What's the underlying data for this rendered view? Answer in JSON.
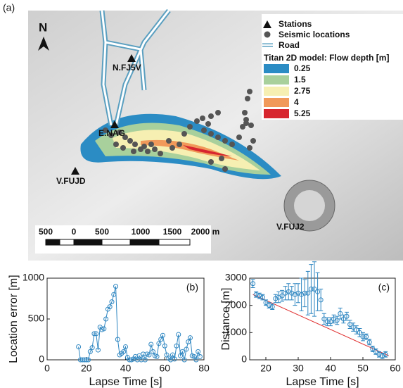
{
  "map": {
    "label": "(a)",
    "north": "N",
    "legend": [
      "Stations",
      "Seismic locations",
      "Road"
    ],
    "flow_title": "Titan 2D model: Flow depth [m]",
    "flow_depth": [
      {
        "value": 0.25,
        "color": "#2b8cc4"
      },
      {
        "value": 1.5,
        "color": "#a8d09c"
      },
      {
        "value": 2.75,
        "color": "#f6efb2"
      },
      {
        "value": 4,
        "color": "#f1995a"
      },
      {
        "value": 5.25,
        "color": "#d7262e"
      }
    ],
    "stations": [
      "N.FJ5V",
      "E.NAG",
      "V.FUJD",
      "V.FUJ2"
    ],
    "scale_labels": [
      "500",
      "0",
      "500",
      "1000",
      "1500",
      "2000 m"
    ]
  },
  "chart_data": [
    {
      "type": "line",
      "label": "(b)",
      "xlabel": "Lapse Time [s]",
      "ylabel": "Location error [m]",
      "x": [
        16,
        17,
        18,
        19,
        20,
        21,
        22,
        23,
        24,
        25,
        26,
        27,
        28,
        29,
        30,
        31,
        32,
        33,
        34,
        35,
        36,
        37,
        38,
        39,
        40,
        41,
        42,
        43,
        44,
        45,
        46,
        47,
        48,
        49,
        50,
        51,
        52,
        53,
        54,
        55,
        56,
        57,
        58,
        59,
        60,
        61,
        62,
        63,
        64,
        65,
        66,
        67,
        68,
        69,
        70,
        71,
        72,
        73,
        74,
        75,
        76,
        77,
        78
      ],
      "series": [
        {
          "color": "#2e86c1",
          "values": [
            160,
            0,
            0,
            0,
            0,
            0,
            100,
            150,
            320,
            320,
            120,
            400,
            370,
            380,
            500,
            620,
            650,
            710,
            800,
            900,
            250,
            60,
            80,
            100,
            160,
            30,
            0,
            0,
            10,
            40,
            0,
            50,
            0,
            70,
            0,
            70,
            60,
            190,
            100,
            50,
            40,
            200,
            250,
            300,
            170,
            60,
            20,
            0,
            60,
            10,
            170,
            310,
            50,
            100,
            0,
            130,
            220,
            270,
            50,
            40,
            0,
            100,
            40
          ]
        }
      ],
      "xlim": [
        0,
        80
      ],
      "xticks": [
        0,
        20,
        40,
        60,
        80
      ],
      "ylim": [
        0,
        1000
      ],
      "yticks": [
        0,
        500,
        1000
      ]
    },
    {
      "type": "errorbar",
      "label": "(c)",
      "xlabel": "Lapse Time [s]",
      "ylabel": "Distance [m]",
      "x": [
        16,
        17,
        18,
        19,
        20,
        21,
        22,
        23,
        24,
        25,
        26,
        27,
        28,
        29,
        30,
        31,
        32,
        33,
        34,
        35,
        36,
        37,
        38,
        39,
        40,
        41,
        42,
        43,
        44,
        45,
        46,
        47,
        48,
        49,
        50,
        51,
        52,
        53,
        54,
        55,
        56,
        57
      ],
      "series": [
        {
          "color": "#2e86c1",
          "values": [
            2800,
            2400,
            2350,
            2300,
            2100,
            2000,
            1950,
            2250,
            2300,
            2350,
            2450,
            2500,
            2450,
            2400,
            2450,
            2400,
            2450,
            2450,
            2600,
            2600,
            2500,
            2200,
            1500,
            1400,
            1400,
            1500,
            1450,
            1700,
            1500,
            1600,
            1300,
            1200,
            1100,
            1000,
            850,
            850,
            650,
            400,
            300,
            200,
            150,
            200
          ],
          "errors": [
            150,
            100,
            100,
            100,
            100,
            100,
            100,
            150,
            200,
            200,
            250,
            300,
            250,
            400,
            350,
            600,
            500,
            800,
            900,
            1000,
            700,
            400,
            200,
            150,
            150,
            150,
            150,
            200,
            150,
            150,
            150,
            150,
            150,
            150,
            150,
            100,
            100,
            100,
            100,
            100,
            100,
            100
          ]
        }
      ],
      "trend": {
        "color": "#e03030",
        "x": [
          16,
          58
        ],
        "values": [
          2400,
          150
        ]
      },
      "xlim": [
        15,
        60
      ],
      "xticks": [
        20,
        30,
        40,
        50,
        60
      ],
      "ylim": [
        0,
        3000
      ],
      "yticks": [
        0,
        1000,
        2000,
        3000
      ]
    }
  ]
}
